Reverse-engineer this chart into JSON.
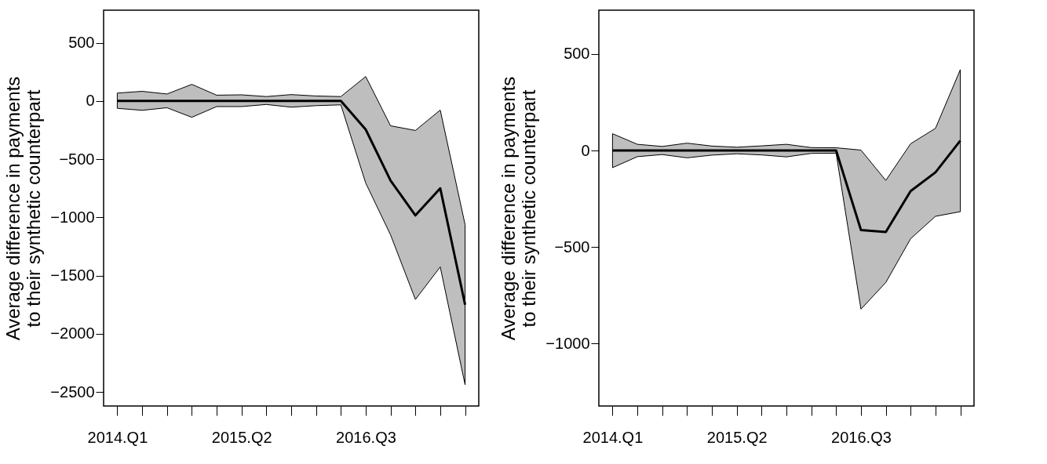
{
  "chart_data": [
    {
      "type": "line",
      "ylabel": "Average difference in payments\nto their synthetic counterpart",
      "categories": [
        "2014.Q1",
        null,
        null,
        null,
        null,
        "2015.Q2",
        null,
        null,
        null,
        null,
        "2016.Q3",
        null,
        null,
        null,
        null
      ],
      "series": [
        {
          "color": "#000000",
          "values": [
            0,
            0,
            0,
            0,
            0,
            0,
            0,
            0,
            0,
            0,
            -245,
            -683,
            -983,
            -750,
            -1750
          ],
          "upper": [
            68,
            83,
            60,
            143,
            50,
            53,
            38,
            55,
            43,
            38,
            210,
            -213,
            -253,
            -78,
            -1063
          ],
          "lower": [
            -63,
            -80,
            -58,
            -140,
            -48,
            -48,
            -30,
            -53,
            -40,
            -33,
            -705,
            -1150,
            -1705,
            -1425,
            -2438
          ]
        }
      ],
      "ylim": [
        -2620,
        780
      ],
      "yticks": [
        -2500,
        -2000,
        -1500,
        -1000,
        -500,
        0,
        500
      ],
      "grid": false
    },
    {
      "type": "line",
      "ylabel": "Average difference in payments\nto their synthetic counterpart",
      "categories": [
        "2014.Q1",
        null,
        null,
        null,
        null,
        "2015.Q2",
        null,
        null,
        null,
        null,
        "2016.Q3",
        null,
        null,
        null,
        null
      ],
      "series": [
        {
          "color": "#000000",
          "values": [
            0,
            0,
            0,
            0,
            0,
            0,
            0,
            0,
            0,
            0,
            -412,
            -422,
            -210,
            -113,
            51
          ],
          "upper": [
            87,
            32,
            21,
            38,
            23,
            17,
            24,
            32,
            15,
            14,
            2,
            -155,
            35,
            115,
            419
          ],
          "lower": [
            -89,
            -32,
            -21,
            -38,
            -24,
            -17,
            -23,
            -33,
            -15,
            -14,
            -822,
            -684,
            -457,
            -341,
            -317
          ]
        }
      ],
      "ylim": [
        -1324,
        727
      ],
      "yticks": [
        -1000,
        -500,
        0,
        500
      ],
      "grid": false
    }
  ]
}
